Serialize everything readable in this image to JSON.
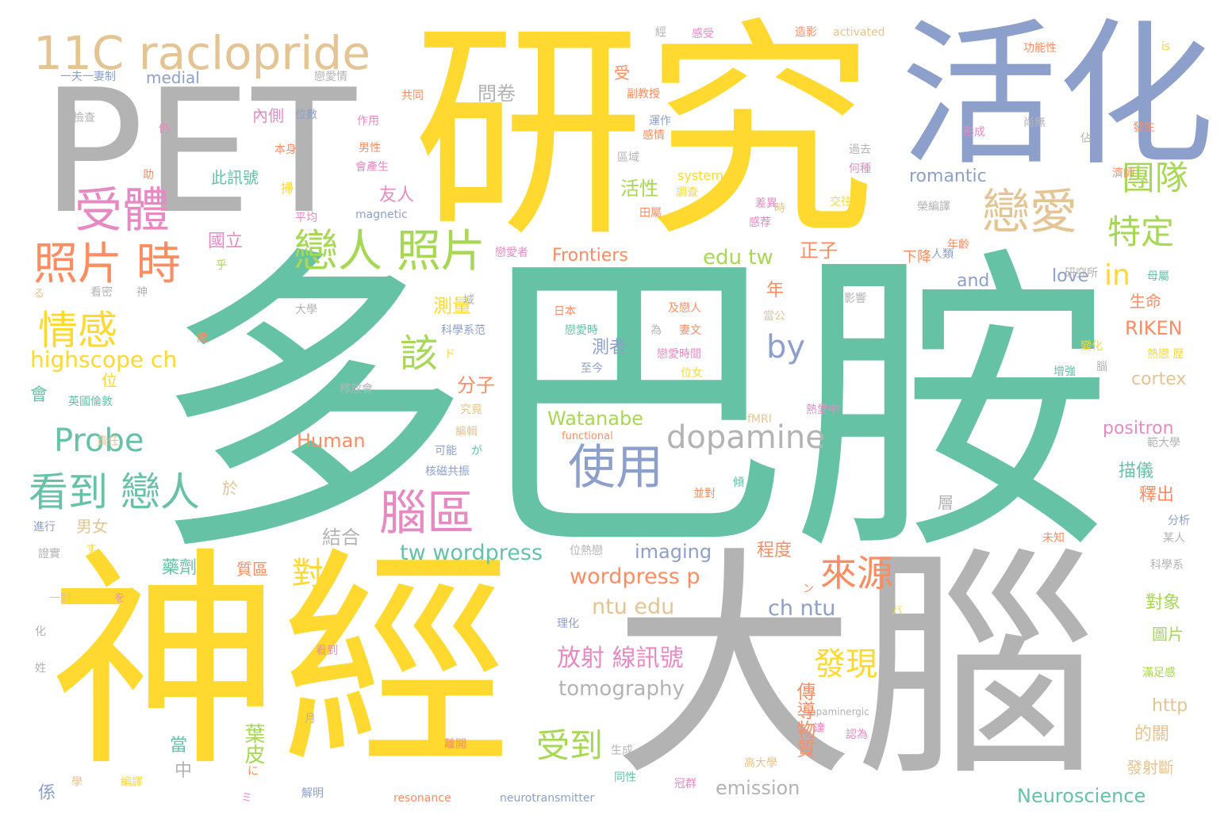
{
  "palette": {
    "teal": "#66c2a5",
    "gold": "#ffd92f",
    "gray": "#b3b3b3",
    "blue": "#8da0cb",
    "tan": "#e5c494",
    "pink": "#e78ac3",
    "green": "#a6d854",
    "orange": "#fc8d62"
  },
  "words": [
    {
      "text": "多巴胺",
      "color": "teal"
    },
    {
      "text": "研究",
      "color": "gold"
    },
    {
      "text": "PET",
      "color": "gray"
    },
    {
      "text": "活化",
      "color": "blue"
    },
    {
      "text": "神經",
      "color": "gold"
    },
    {
      "text": "大腦",
      "color": "gray"
    },
    {
      "text": "11C raclopride",
      "color": "tan"
    },
    {
      "text": "受體",
      "color": "pink"
    },
    {
      "text": "照片 時",
      "color": "orange"
    },
    {
      "text": "戀人 照片",
      "color": "green"
    },
    {
      "text": "戀愛",
      "color": "tan"
    },
    {
      "text": "團隊",
      "color": "green"
    },
    {
      "text": "特定",
      "color": "green"
    },
    {
      "text": "情感",
      "color": "gold"
    },
    {
      "text": "highscope ch",
      "color": "gold"
    },
    {
      "text": "Probe",
      "color": "teal"
    },
    {
      "text": "看到 戀人",
      "color": "teal"
    },
    {
      "text": "dopamine",
      "color": "gray"
    },
    {
      "text": "使用",
      "color": "blue"
    },
    {
      "text": "by",
      "color": "blue"
    },
    {
      "text": "腦區",
      "color": "pink"
    },
    {
      "text": "來源",
      "color": "orange"
    },
    {
      "text": "發現",
      "color": "gold"
    },
    {
      "text": "受到",
      "color": "green"
    },
    {
      "text": "對",
      "color": "gold"
    },
    {
      "text": "該",
      "color": "green"
    },
    {
      "text": "in",
      "color": "gold"
    },
    {
      "text": "edu tw",
      "color": "green"
    },
    {
      "text": "Frontiers",
      "color": "orange"
    },
    {
      "text": "romantic",
      "color": "blue"
    },
    {
      "text": "tw wordpress",
      "color": "teal"
    },
    {
      "text": "wordpress p",
      "color": "orange"
    },
    {
      "text": "ntu edu",
      "color": "tan"
    },
    {
      "text": "ch ntu",
      "color": "blue"
    },
    {
      "text": "放射 線訊號",
      "color": "pink"
    },
    {
      "text": "tomography",
      "color": "gray"
    },
    {
      "text": "emission",
      "color": "gray"
    },
    {
      "text": "Neuroscience",
      "color": "teal"
    },
    {
      "text": "imaging",
      "color": "blue"
    },
    {
      "text": "Watanabe",
      "color": "green"
    },
    {
      "text": "Human",
      "color": "orange"
    },
    {
      "text": "positron",
      "color": "pink"
    },
    {
      "text": "RIKEN",
      "color": "orange"
    },
    {
      "text": "cortex",
      "color": "tan"
    },
    {
      "text": "love",
      "color": "blue"
    },
    {
      "text": "and",
      "color": "blue"
    },
    {
      "text": "medial",
      "color": "blue"
    },
    {
      "text": "activated",
      "color": "tan"
    },
    {
      "text": "system",
      "color": "gold"
    },
    {
      "text": "magnetic",
      "color": "blue"
    },
    {
      "text": "functional",
      "color": "orange"
    },
    {
      "text": "fMRI",
      "color": "tan"
    },
    {
      "text": "resonance",
      "color": "orange"
    },
    {
      "text": "neurotransmitter",
      "color": "blue"
    },
    {
      "text": "Dopaminergic",
      "color": "gray"
    },
    {
      "text": "http",
      "color": "tan"
    },
    {
      "text": "is",
      "color": "gold"
    },
    {
      "text": "傳導物質",
      "color": "orange"
    },
    {
      "text": "活性",
      "color": "green"
    },
    {
      "text": "友人",
      "color": "pink"
    },
    {
      "text": "此訊號",
      "color": "teal"
    },
    {
      "text": "內側",
      "color": "pink"
    },
    {
      "text": "問卷",
      "color": "gray"
    },
    {
      "text": "國立",
      "color": "pink"
    },
    {
      "text": "正子",
      "color": "orange"
    },
    {
      "text": "下降",
      "color": "orange"
    },
    {
      "text": "測量",
      "color": "gold"
    },
    {
      "text": "分子",
      "color": "orange"
    },
    {
      "text": "結合",
      "color": "gray"
    },
    {
      "text": "描儀",
      "color": "teal"
    },
    {
      "text": "釋出",
      "color": "orange"
    },
    {
      "text": "生命",
      "color": "orange"
    },
    {
      "text": "對象",
      "color": "green"
    },
    {
      "text": "圖片",
      "color": "green"
    },
    {
      "text": "的關",
      "color": "tan"
    },
    {
      "text": "發射斷",
      "color": "tan"
    },
    {
      "text": "程度",
      "color": "orange"
    },
    {
      "text": "藥劑",
      "color": "teal"
    },
    {
      "text": "質區",
      "color": "orange"
    },
    {
      "text": "男女",
      "color": "tan"
    },
    {
      "text": "葉皮",
      "color": "green"
    },
    {
      "text": "測者",
      "color": "blue"
    },
    {
      "text": "年",
      "color": "orange"
    },
    {
      "text": "位",
      "color": "gold"
    },
    {
      "text": "會",
      "color": "teal"
    },
    {
      "text": "當",
      "color": "teal"
    },
    {
      "text": "中",
      "color": "gray"
    },
    {
      "text": "係",
      "color": "blue"
    },
    {
      "text": "於",
      "color": "tan"
    },
    {
      "text": "層",
      "color": "gray"
    },
    {
      "text": "一夫一妻制",
      "color": "blue"
    },
    {
      "text": "戀愛情",
      "color": "gray"
    },
    {
      "text": "共同",
      "color": "orange"
    },
    {
      "text": "副教授",
      "color": "orange"
    },
    {
      "text": "運作",
      "color": "blue"
    },
    {
      "text": "感情",
      "color": "orange"
    },
    {
      "text": "區域",
      "color": "gray"
    },
    {
      "text": "作用",
      "color": "pink"
    },
    {
      "text": "位數",
      "color": "blue"
    },
    {
      "text": "本身",
      "color": "orange"
    },
    {
      "text": "男性",
      "color": "orange"
    },
    {
      "text": "會產生",
      "color": "pink"
    },
    {
      "text": "平均",
      "color": "pink"
    },
    {
      "text": "調查",
      "color": "gold"
    },
    {
      "text": "田屬",
      "color": "orange"
    },
    {
      "text": "差異",
      "color": "pink"
    },
    {
      "text": "感荐",
      "color": "pink"
    },
    {
      "text": "過去",
      "color": "gray"
    },
    {
      "text": "何種",
      "color": "pink"
    },
    {
      "text": "交往",
      "color": "gold"
    },
    {
      "text": "榮編譯",
      "color": "gray"
    },
    {
      "text": "功能性",
      "color": "orange"
    },
    {
      "text": "發生",
      "color": "orange"
    },
    {
      "text": "形成",
      "color": "pink"
    },
    {
      "text": "尚無",
      "color": "gray"
    },
    {
      "text": "濟師",
      "color": "orange"
    },
    {
      "text": "人類",
      "color": "blue"
    },
    {
      "text": "研究所",
      "color": "gray"
    },
    {
      "text": "母屬",
      "color": "teal"
    },
    {
      "text": "戀愛者",
      "color": "pink"
    },
    {
      "text": "年齡",
      "color": "orange"
    },
    {
      "text": "日本",
      "color": "orange"
    },
    {
      "text": "戀愛時",
      "color": "teal"
    },
    {
      "text": "及戀人",
      "color": "orange"
    },
    {
      "text": "為",
      "color": "gray"
    },
    {
      "text": "妻文",
      "color": "orange"
    },
    {
      "text": "戀愛時間",
      "color": "pink"
    },
    {
      "text": "位女",
      "color": "gold"
    },
    {
      "text": "至今",
      "color": "blue"
    },
    {
      "text": "科學系范",
      "color": "blue"
    },
    {
      "text": "增強",
      "color": "teal"
    },
    {
      "text": "變化",
      "color": "gold"
    },
    {
      "text": "熱戀 歷",
      "color": "gold"
    },
    {
      "text": "熱愛中",
      "color": "pink"
    },
    {
      "text": "範大學",
      "color": "gray"
    },
    {
      "text": "釋放會",
      "color": "gray"
    },
    {
      "text": "究竟",
      "color": "tan"
    },
    {
      "text": "編輯",
      "color": "tan"
    },
    {
      "text": "可能",
      "color": "blue"
    },
    {
      "text": "核磁共振",
      "color": "blue"
    },
    {
      "text": "英國倫敦",
      "color": "teal"
    },
    {
      "text": "責任",
      "color": "tan"
    },
    {
      "text": "進行",
      "color": "blue"
    },
    {
      "text": "證實",
      "color": "gray"
    },
    {
      "text": "一對",
      "color": "tan"
    },
    {
      "text": "看到",
      "color": "pink"
    },
    {
      "text": "位熱戀",
      "color": "gray"
    },
    {
      "text": "理化",
      "color": "blue"
    },
    {
      "text": "並對",
      "color": "orange"
    },
    {
      "text": "傾",
      "color": "teal"
    },
    {
      "text": "認為",
      "color": "pink"
    },
    {
      "text": "離開",
      "color": "orange"
    },
    {
      "text": "生成",
      "color": "gray"
    },
    {
      "text": "高大學",
      "color": "tan"
    },
    {
      "text": "同性",
      "color": "teal"
    },
    {
      "text": "冠群",
      "color": "pink"
    },
    {
      "text": "解明",
      "color": "blue"
    },
    {
      "text": "編譯",
      "color": "gold"
    },
    {
      "text": "科學系",
      "color": "gray"
    },
    {
      "text": "滿足感",
      "color": "green"
    },
    {
      "text": "未知",
      "color": "orange"
    },
    {
      "text": "分析",
      "color": "blue"
    },
    {
      "text": "某人",
      "color": "gray"
    },
    {
      "text": "檢查",
      "color": "gray"
    },
    {
      "text": "造影",
      "color": "orange"
    },
    {
      "text": "感受",
      "color": "pink"
    },
    {
      "text": "經",
      "color": "gray"
    },
    {
      "text": "受",
      "color": "orange"
    },
    {
      "text": "助",
      "color": "orange"
    },
    {
      "text": "仍",
      "color": "pink"
    },
    {
      "text": "掃",
      "color": "gold"
    },
    {
      "text": "乎",
      "color": "green"
    },
    {
      "text": "る",
      "color": "tan"
    },
    {
      "text": "看密",
      "color": "gray"
    },
    {
      "text": "神",
      "color": "gray"
    },
    {
      "text": "大學",
      "color": "gray"
    },
    {
      "text": "域",
      "color": "gray"
    },
    {
      "text": "當公",
      "color": "tan"
    },
    {
      "text": "歲",
      "color": "orange"
    },
    {
      "text": "影響",
      "color": "gray"
    },
    {
      "text": "腦",
      "color": "gray"
    },
    {
      "text": "佔",
      "color": "gray"
    },
    {
      "text": "ド",
      "color": "gold"
    },
    {
      "text": "が",
      "color": "teal"
    },
    {
      "text": "す",
      "color": "gold"
    },
    {
      "text": "を",
      "color": "pink"
    },
    {
      "text": "ン",
      "color": "orange"
    },
    {
      "text": "バ",
      "color": "gold"
    },
    {
      "text": "に",
      "color": "orange"
    },
    {
      "text": "ミ",
      "color": "pink"
    },
    {
      "text": "化",
      "color": "gray"
    },
    {
      "text": "姓",
      "color": "gray"
    },
    {
      "text": "月",
      "color": "gray"
    },
    {
      "text": "學",
      "color": "tan"
    },
    {
      "text": "達",
      "color": "pink"
    },
    {
      "text": "時",
      "color": "tan"
    }
  ]
}
